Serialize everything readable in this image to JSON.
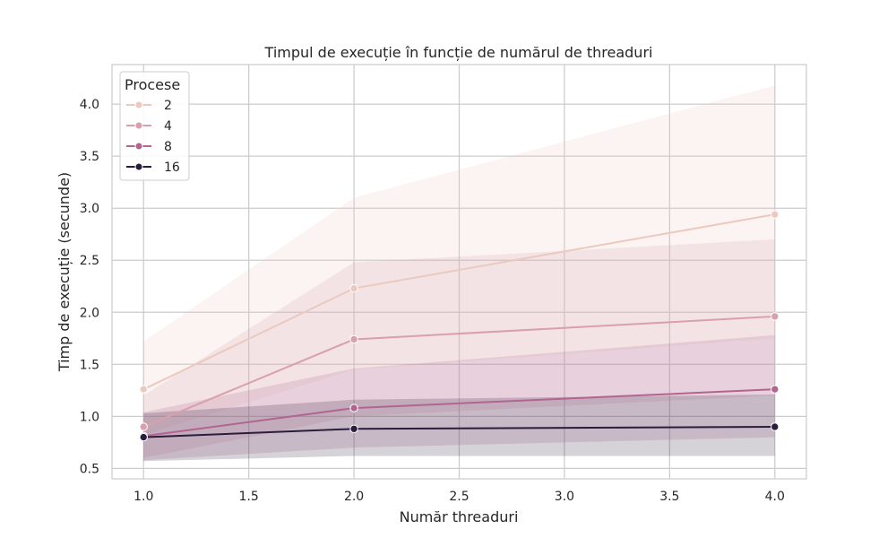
{
  "chart_data": {
    "type": "line",
    "title": "Timpul de execuție în funcție de numărul de threaduri",
    "xlabel": "Număr threaduri",
    "ylabel": "Timp de execuție (secunde)",
    "xlim": [
      0.85,
      4.15
    ],
    "ylim": [
      0.4,
      4.38
    ],
    "xticks": [
      1.0,
      1.5,
      2.0,
      2.5,
      3.0,
      3.5,
      4.0
    ],
    "xtick_labels": [
      "1.0",
      "1.5",
      "2.0",
      "2.5",
      "3.0",
      "3.5",
      "4.0"
    ],
    "yticks": [
      0.5,
      1.0,
      1.5,
      2.0,
      2.5,
      3.0,
      3.5,
      4.0
    ],
    "ytick_labels": [
      "0.5",
      "1.0",
      "1.5",
      "2.0",
      "2.5",
      "3.0",
      "3.5",
      "4.0"
    ],
    "grid": true,
    "legend": {
      "title": "Procese",
      "placement": "top-left"
    },
    "x": [
      1,
      2,
      4
    ],
    "series": [
      {
        "name": "2",
        "color": "#ecc9bf",
        "values": [
          1.26,
          2.23,
          2.94
        ],
        "ci_low": [
          0.82,
          1.45,
          1.75
        ],
        "ci_high": [
          1.72,
          3.1,
          4.18
        ]
      },
      {
        "name": "4",
        "color": "#d8a0ad",
        "values": [
          0.9,
          1.74,
          1.96
        ],
        "ci_low": [
          0.6,
          1.0,
          1.2
        ],
        "ci_high": [
          1.2,
          2.48,
          2.7
        ]
      },
      {
        "name": "8",
        "color": "#b16590",
        "values": [
          0.81,
          1.08,
          1.26
        ],
        "ci_low": [
          0.58,
          0.7,
          0.8
        ],
        "ci_high": [
          1.04,
          1.46,
          1.78
        ]
      },
      {
        "name": "16",
        "color": "#2b1d3d",
        "values": [
          0.8,
          0.88,
          0.9
        ],
        "ci_low": [
          0.57,
          0.62,
          0.62
        ],
        "ci_high": [
          1.03,
          1.16,
          1.21
        ]
      }
    ]
  }
}
